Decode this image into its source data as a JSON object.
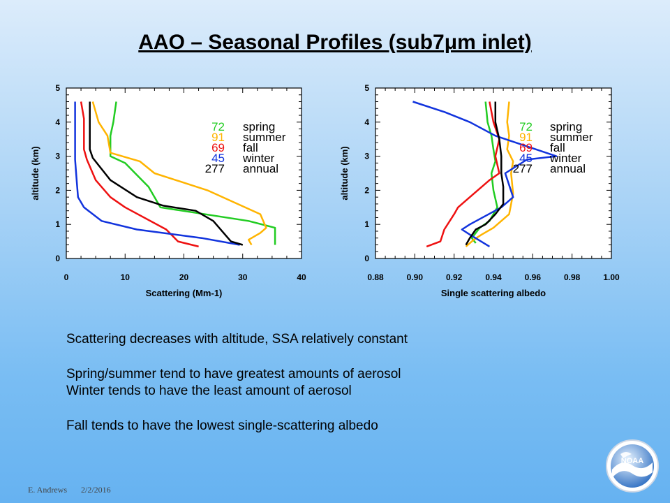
{
  "slide": {
    "title": "AAO – Seasonal Profiles (sub7μm inlet)",
    "bullets": [
      "Scattering decreases with altitude, SSA relatively constant",
      "Spring/summer tend to have greatest amounts of aerosol",
      "Winter tends to have the least amount of aerosol",
      "Fall tends to have the lowest single-scattering albedo"
    ],
    "footer_author": "E. Andrews",
    "footer_date": "2/2/2016",
    "logo_text": "NOAA"
  },
  "colors": {
    "spring": "#22cc22",
    "summer": "#ffb400",
    "fall": "#ee1111",
    "winter": "#1133dd",
    "annual": "#000000"
  },
  "chart_data": [
    {
      "type": "line",
      "xlabel": "Scattering (Mm-1)",
      "ylabel": "altitude (km)",
      "xlim": [
        0,
        40
      ],
      "ylim": [
        0,
        5
      ],
      "xticks": [
        "0",
        "10",
        "20",
        "30",
        "40"
      ],
      "yticks": [
        "0",
        "1",
        "2",
        "3",
        "4",
        "5"
      ],
      "legend": [
        {
          "count": "72",
          "season": "spring"
        },
        {
          "count": "91",
          "season": "summer"
        },
        {
          "count": "69",
          "season": "fall"
        },
        {
          "count": "45",
          "season": "winter"
        },
        {
          "count": "277",
          "season": "annual"
        }
      ],
      "series": [
        {
          "name": "spring",
          "color": "#22cc22",
          "points": [
            [
              35.5,
              0.4
            ],
            [
              35.5,
              0.85
            ],
            [
              35.5,
              0.9
            ],
            [
              31,
              1.1
            ],
            [
              16,
              1.5
            ],
            [
              14,
              2.1
            ],
            [
              10,
              2.8
            ],
            [
              7.5,
              3.0
            ],
            [
              7.5,
              3.6
            ],
            [
              8,
              4.0
            ],
            [
              8.5,
              4.6
            ]
          ]
        },
        {
          "name": "summer",
          "color": "#ffb400",
          "points": [
            [
              31.5,
              0.4
            ],
            [
              31,
              0.55
            ],
            [
              33,
              0.75
            ],
            [
              34,
              0.9
            ],
            [
              33,
              1.3
            ],
            [
              24,
              2.0
            ],
            [
              15,
              2.5
            ],
            [
              12.5,
              2.85
            ],
            [
              7.5,
              3.1
            ],
            [
              7,
              3.6
            ],
            [
              5.5,
              4.0
            ],
            [
              5,
              4.3
            ],
            [
              4.5,
              4.6
            ]
          ]
        },
        {
          "name": "fall",
          "color": "#ee1111",
          "points": [
            [
              22.5,
              0.35
            ],
            [
              19,
              0.5
            ],
            [
              17,
              0.85
            ],
            [
              10,
              1.5
            ],
            [
              7.5,
              1.8
            ],
            [
              5,
              2.3
            ],
            [
              3.5,
              2.9
            ],
            [
              3,
              3.2
            ],
            [
              3,
              3.6
            ],
            [
              3,
              4.1
            ],
            [
              2.5,
              4.6
            ]
          ]
        },
        {
          "name": "winter",
          "color": "#1133dd",
          "points": [
            [
              29.5,
              0.4
            ],
            [
              23,
              0.6
            ],
            [
              12,
              0.85
            ],
            [
              6,
              1.1
            ],
            [
              3,
              1.5
            ],
            [
              2,
              1.8
            ],
            [
              1.8,
              2.2
            ],
            [
              1.5,
              2.9
            ],
            [
              1.5,
              3.6
            ],
            [
              1.5,
              4.1
            ],
            [
              1.5,
              4.6
            ]
          ]
        },
        {
          "name": "annual",
          "color": "#000000",
          "points": [
            [
              30,
              0.4
            ],
            [
              28,
              0.5
            ],
            [
              25,
              1.1
            ],
            [
              22,
              1.4
            ],
            [
              16.5,
              1.55
            ],
            [
              12,
              1.8
            ],
            [
              7.5,
              2.3
            ],
            [
              4.5,
              2.95
            ],
            [
              4,
              3.2
            ],
            [
              4,
              3.7
            ],
            [
              4,
              4.3
            ],
            [
              4,
              4.6
            ]
          ]
        }
      ]
    },
    {
      "type": "line",
      "xlabel": "Single scattering albedo",
      "ylabel": "altitude (km)",
      "xlim": [
        0.88,
        1.0
      ],
      "ylim": [
        0,
        5
      ],
      "xticks": [
        "0.88",
        "0.90",
        "0.92",
        "0.94",
        "0.96",
        "0.98",
        "1.00"
      ],
      "yticks": [
        "0",
        "1",
        "2",
        "3",
        "4",
        "5"
      ],
      "legend": [
        {
          "count": "72",
          "season": "spring"
        },
        {
          "count": "91",
          "season": "summer"
        },
        {
          "count": "69",
          "season": "fall"
        },
        {
          "count": "45",
          "season": "winter"
        },
        {
          "count": "277",
          "season": "annual"
        }
      ],
      "series": [
        {
          "name": "spring",
          "color": "#22cc22",
          "points": [
            [
              0.931,
              0.45
            ],
            [
              0.929,
              0.6
            ],
            [
              0.933,
              0.9
            ],
            [
              0.938,
              1.1
            ],
            [
              0.942,
              1.5
            ],
            [
              0.94,
              2.0
            ],
            [
              0.939,
              2.5
            ],
            [
              0.941,
              2.85
            ],
            [
              0.94,
              3.2
            ],
            [
              0.939,
              3.6
            ],
            [
              0.937,
              4.0
            ],
            [
              0.936,
              4.6
            ]
          ]
        },
        {
          "name": "summer",
          "color": "#ffb400",
          "points": [
            [
              0.926,
              0.35
            ],
            [
              0.93,
              0.55
            ],
            [
              0.934,
              0.7
            ],
            [
              0.94,
              0.9
            ],
            [
              0.948,
              1.3
            ],
            [
              0.95,
              1.9
            ],
            [
              0.949,
              2.5
            ],
            [
              0.95,
              2.85
            ],
            [
              0.947,
              3.2
            ],
            [
              0.948,
              3.6
            ],
            [
              0.947,
              4.0
            ],
            [
              0.948,
              4.6
            ]
          ]
        },
        {
          "name": "fall",
          "color": "#ee1111",
          "points": [
            [
              0.906,
              0.35
            ],
            [
              0.913,
              0.5
            ],
            [
              0.915,
              0.85
            ],
            [
              0.92,
              1.3
            ],
            [
              0.922,
              1.5
            ],
            [
              0.93,
              1.9
            ],
            [
              0.938,
              2.3
            ],
            [
              0.943,
              2.5
            ],
            [
              0.941,
              3.0
            ],
            [
              0.943,
              3.5
            ],
            [
              0.94,
              4.0
            ],
            [
              0.938,
              4.6
            ]
          ]
        },
        {
          "name": "winter",
          "color": "#1133dd",
          "points": [
            [
              0.938,
              0.35
            ],
            [
              0.928,
              0.7
            ],
            [
              0.924,
              0.85
            ],
            [
              0.928,
              1.0
            ],
            [
              0.944,
              1.5
            ],
            [
              0.95,
              1.8
            ],
            [
              0.946,
              2.5
            ],
            [
              0.957,
              2.9
            ],
            [
              0.972,
              3.0
            ],
            [
              0.941,
              3.6
            ],
            [
              0.928,
              4.0
            ],
            [
              0.915,
              4.3
            ],
            [
              0.899,
              4.6
            ]
          ]
        },
        {
          "name": "annual",
          "color": "#000000",
          "points": [
            [
              0.926,
              0.4
            ],
            [
              0.928,
              0.6
            ],
            [
              0.931,
              0.85
            ],
            [
              0.936,
              1.0
            ],
            [
              0.941,
              1.3
            ],
            [
              0.945,
              1.6
            ],
            [
              0.945,
              2.1
            ],
            [
              0.944,
              2.5
            ],
            [
              0.944,
              3.0
            ],
            [
              0.943,
              3.5
            ],
            [
              0.941,
              4.0
            ],
            [
              0.941,
              4.6
            ]
          ]
        }
      ]
    }
  ]
}
